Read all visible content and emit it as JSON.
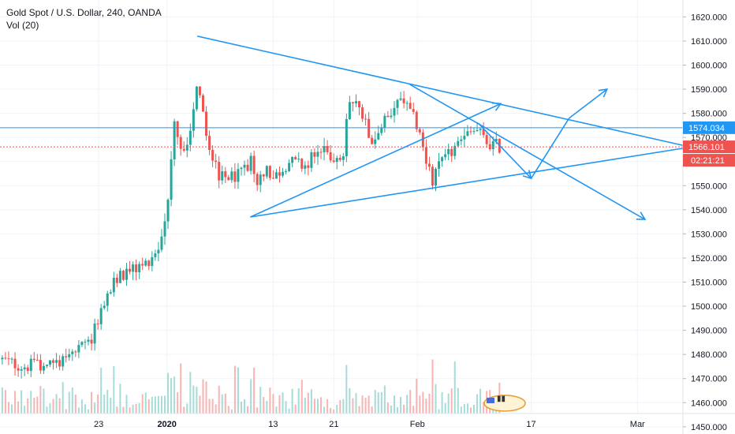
{
  "chart_data": {
    "type": "candlestick",
    "title": "Gold Spot / U.S. Dollar, 240, OANDA",
    "indicator_label": "Vol (20)",
    "ylim": [
      1447,
      1627
    ],
    "y_ticks": [
      1450,
      1460,
      1470,
      1480,
      1490,
      1500,
      1510,
      1520,
      1530,
      1540,
      1550,
      1560,
      1570,
      1580,
      1590,
      1600,
      1610,
      1620
    ],
    "y_tick_labels": [
      "1450.000",
      "1460.000",
      "1470.000",
      "1480.000",
      "1490.000",
      "1500.000",
      "1510.000",
      "1520.000",
      "1530.000",
      "1540.000",
      "1550.000",
      "1560.000",
      "1570.000",
      "1580.000",
      "1590.000",
      "1600.000",
      "1610.000",
      "1620.000"
    ],
    "x_ticks": [
      {
        "label": "23",
        "x": 13
      },
      {
        "label": "2020",
        "x": 22
      },
      {
        "label": "13",
        "x": 36
      },
      {
        "label": "21",
        "x": 44
      },
      {
        "label": "Feb",
        "x": 55
      },
      {
        "label": "17",
        "x": 70
      },
      {
        "label": "Mar",
        "x": 84
      }
    ],
    "xlim": [
      0,
      90
    ],
    "candle_anchors": [
      [
        0,
        1478
      ],
      [
        3,
        1475
      ],
      [
        6,
        1476
      ],
      [
        9,
        1479
      ],
      [
        12,
        1485
      ],
      [
        14,
        1505
      ],
      [
        16,
        1513
      ],
      [
        19,
        1517
      ],
      [
        21,
        1525
      ],
      [
        22,
        1540
      ],
      [
        23,
        1575
      ],
      [
        24,
        1562
      ],
      [
        25,
        1572
      ],
      [
        26,
        1595
      ],
      [
        27,
        1573
      ],
      [
        28,
        1560
      ],
      [
        29,
        1553
      ],
      [
        31,
        1554
      ],
      [
        33,
        1560
      ],
      [
        34,
        1550
      ],
      [
        35,
        1558
      ],
      [
        36,
        1553
      ],
      [
        38,
        1560
      ],
      [
        40,
        1558
      ],
      [
        42,
        1565
      ],
      [
        44,
        1562
      ],
      [
        45,
        1557
      ],
      [
        46,
        1586
      ],
      [
        48,
        1580
      ],
      [
        49,
        1568
      ],
      [
        51,
        1578
      ],
      [
        53,
        1586
      ],
      [
        54,
        1580
      ],
      [
        55,
        1575
      ],
      [
        56,
        1562
      ],
      [
        57,
        1553
      ],
      [
        58,
        1558
      ],
      [
        60,
        1566
      ],
      [
        62,
        1572
      ],
      [
        63,
        1573
      ],
      [
        64,
        1568
      ],
      [
        66,
        1566
      ]
    ],
    "last_candle_x": 66,
    "trendlines": [
      {
        "from": [
          26,
          1612
        ],
        "to": [
          91,
          1566
        ]
      },
      {
        "from": [
          33,
          1537
        ],
        "to": [
          91,
          1566
        ]
      },
      {
        "from": [
          33,
          1537
        ],
        "to": [
          66,
          1584
        ]
      },
      {
        "from": [
          54,
          1592
        ],
        "to": [
          85,
          1536
        ]
      },
      {
        "from": [
          63,
          1576
        ],
        "to": [
          70,
          1553
        ]
      },
      {
        "from": [
          70,
          1553
        ],
        "to": [
          75,
          1578
        ]
      },
      {
        "from": [
          75,
          1578
        ],
        "to": [
          80,
          1590
        ]
      }
    ],
    "arrowheads_at": [
      [
        66,
        1584
      ],
      [
        70,
        1553
      ],
      [
        80,
        1590
      ],
      [
        85,
        1536
      ],
      [
        91,
        1566
      ]
    ],
    "horizontal_lines": [
      {
        "value": 1574.034,
        "label": "1574.034",
        "color": "#2196f3",
        "style": "solid"
      },
      {
        "value": 1566.101,
        "label": "1566.101",
        "color": "#ef5350",
        "style": "dotted"
      }
    ],
    "countdown_label": "02:21:21",
    "colors": {
      "up": "#26a69a",
      "down": "#ef5350",
      "trendline": "#2196f3",
      "vol_up": "#a6dcd7",
      "vol_down": "#f7b4b3"
    }
  }
}
